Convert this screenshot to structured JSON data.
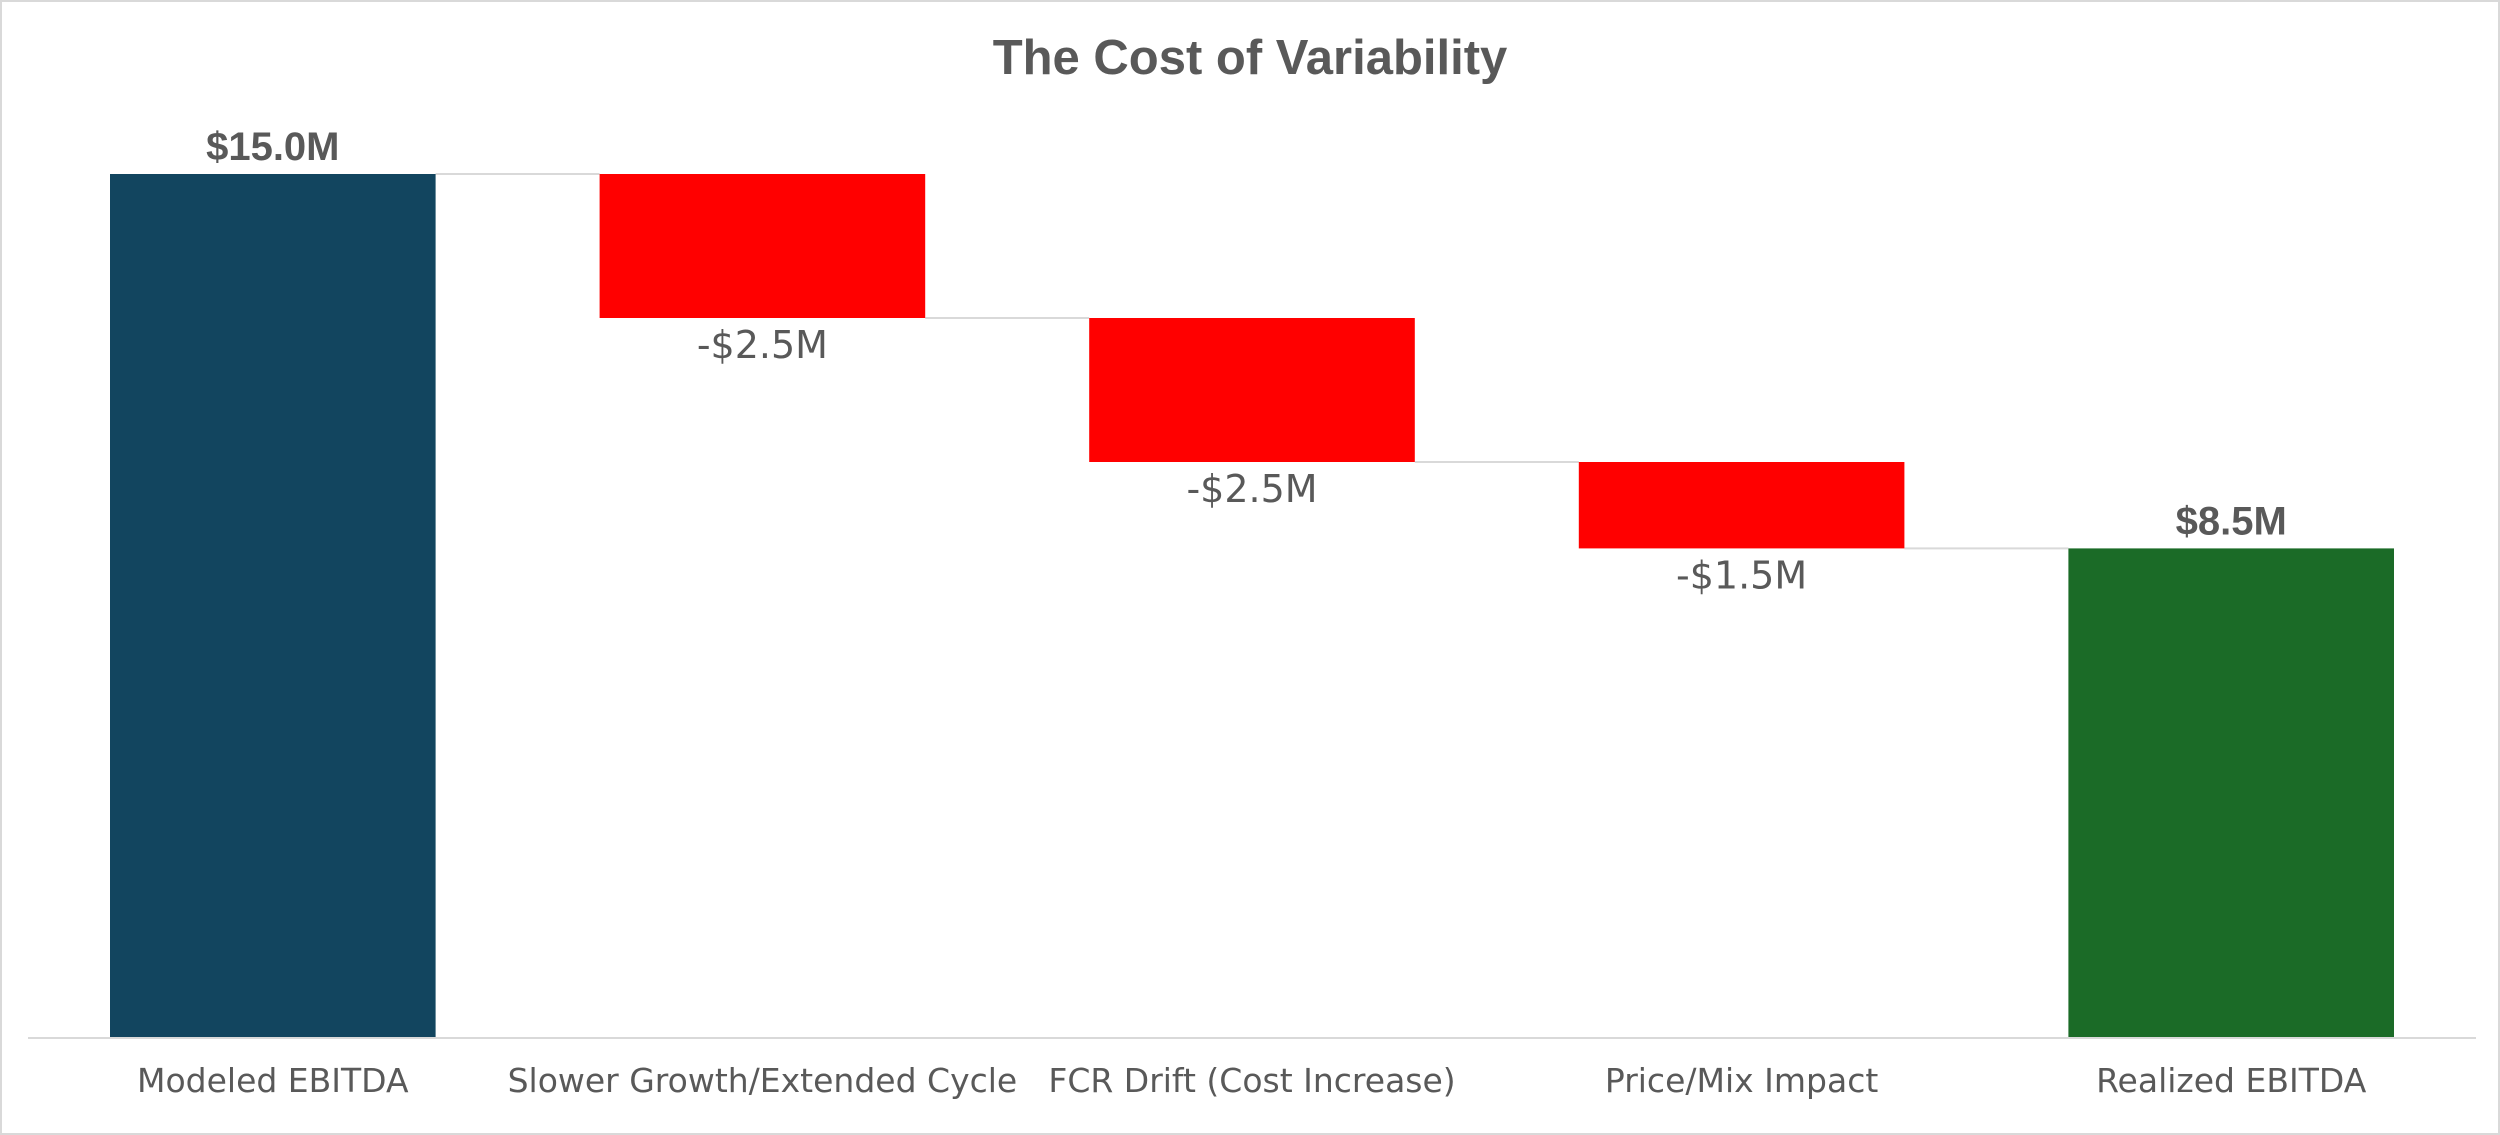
{
  "chart_data": {
    "type": "waterfall",
    "title": "The Cost of Variability",
    "categories": [
      "Modeled EBITDA",
      "Slower Growth/Extended Cycle",
      "FCR Drift (Cost Increase)",
      "Price/Mix Impact",
      "Realized EBITDA"
    ],
    "values": [
      15.0,
      -2.5,
      -2.5,
      -1.5,
      8.5
    ],
    "kinds": [
      "total",
      "decrease",
      "decrease",
      "decrease",
      "total"
    ],
    "data_labels": [
      "$15.0M",
      "-$2.5M",
      "-$2.5M",
      "-$1.5M",
      "$8.5M"
    ],
    "colors": {
      "start_total": "#12455f",
      "decrease": "#ff0000",
      "end_total": "#1b6b27",
      "connector": "#d9d9d9",
      "axis": "#d9d9d9",
      "text": "#595959"
    },
    "ylim": [
      0,
      15
    ],
    "xlabel": "",
    "ylabel": "",
    "grid": false,
    "legend": "none"
  }
}
